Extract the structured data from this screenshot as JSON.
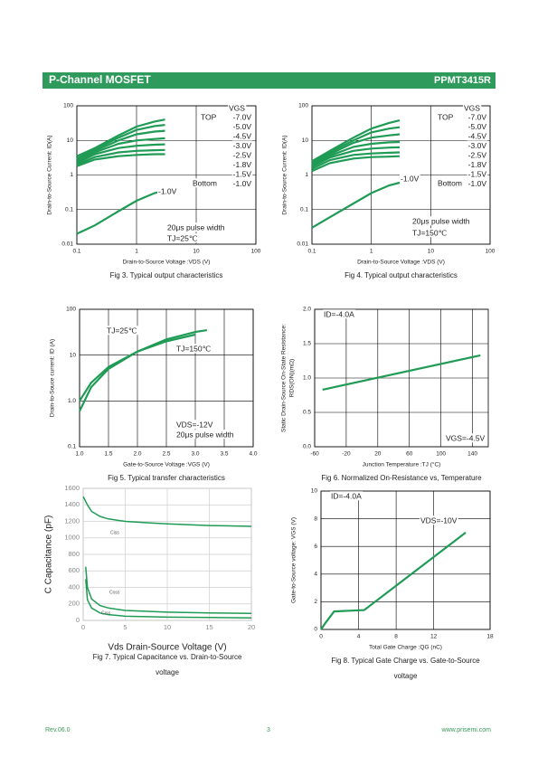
{
  "header": {
    "title": "P-Channel MOSFET",
    "part": "PPMT3415R"
  },
  "footer": {
    "rev": "Rev.06.0",
    "page": "3",
    "url": "www.prisemi.com"
  },
  "chart_data": [
    {
      "type": "line",
      "caption": [
        "Fig 3. Typical output characteristics"
      ],
      "xlabel": "Drain-to-Source Voltage :VDS (V)",
      "ylabel": [
        "Drain-to-Source Current: ID(A)"
      ],
      "xlog": true,
      "ylog": true,
      "xlim": [
        0.1,
        100
      ],
      "ylim": [
        0.01,
        100
      ],
      "xticks": [
        0.1,
        1,
        10,
        100
      ],
      "yticks": [
        0.01,
        0.1,
        1,
        10,
        100
      ],
      "grid": true,
      "color": "#1f9b55",
      "annotations": [
        "VGS",
        "TOP",
        "Bottom",
        "-1.0V",
        "20μs pulse width",
        "TJ=25℃"
      ],
      "series": [
        {
          "name": "-7.0V",
          "x": [
            0.1,
            0.2,
            0.5,
            1,
            2,
            3
          ],
          "values": [
            3.5,
            6,
            14,
            25,
            35,
            40
          ]
        },
        {
          "name": "-5.0V",
          "x": [
            0.1,
            0.2,
            0.5,
            1,
            2,
            3
          ],
          "values": [
            3,
            5.5,
            12,
            20,
            26,
            28
          ]
        },
        {
          "name": "-4.5V",
          "x": [
            0.1,
            0.2,
            0.5,
            1,
            2,
            3
          ],
          "values": [
            2.8,
            5,
            10,
            15,
            18,
            19
          ]
        },
        {
          "name": "-3.0V",
          "x": [
            0.1,
            0.2,
            0.5,
            1,
            2,
            3
          ],
          "values": [
            2.5,
            4.5,
            8,
            10,
            11,
            11.5
          ]
        },
        {
          "name": "-2.5V",
          "x": [
            0.1,
            0.2,
            0.5,
            1,
            2,
            3
          ],
          "values": [
            2.2,
            4,
            6,
            7,
            7.5,
            7.7
          ]
        },
        {
          "name": "-1.8V",
          "x": [
            0.1,
            0.2,
            0.5,
            1,
            2,
            3
          ],
          "values": [
            2,
            3.3,
            4.5,
            5,
            5.2,
            5.3
          ]
        },
        {
          "name": "-1.5V",
          "x": [
            0.1,
            0.2,
            0.5,
            1,
            2,
            3
          ],
          "values": [
            1.8,
            2.8,
            3.5,
            3.8,
            4,
            4
          ]
        },
        {
          "name": "-1.0V",
          "x": [
            0.1,
            0.2,
            0.5,
            1,
            2,
            3
          ],
          "values": [
            0.02,
            0.035,
            0.09,
            0.18,
            0.3,
            0.35
          ]
        }
      ]
    },
    {
      "type": "line",
      "caption": [
        "Fig 4. Typical output characteristics"
      ],
      "xlabel": "Drain-to-Source Voltage :VDS (V)",
      "ylabel": [
        "Drain-to-Source Current: ID(A)"
      ],
      "xlog": true,
      "ylog": true,
      "xlim": [
        0.1,
        100
      ],
      "ylim": [
        0.01,
        100
      ],
      "xticks": [
        0.1,
        1,
        10,
        100
      ],
      "yticks": [
        0.01,
        0.1,
        1,
        10,
        100
      ],
      "grid": true,
      "color": "#1f9b55",
      "annotations": [
        "VGS",
        "TOP",
        "Bottom",
        "-1.0V",
        "20μs pulse width",
        "TJ=150℃"
      ],
      "series": [
        {
          "name": "-7.0V",
          "x": [
            0.1,
            0.2,
            0.5,
            1,
            2,
            3
          ],
          "values": [
            2.5,
            5,
            12,
            22,
            32,
            38
          ]
        },
        {
          "name": "-5.0V",
          "x": [
            0.1,
            0.2,
            0.5,
            1,
            2,
            3
          ],
          "values": [
            2.3,
            4.5,
            10,
            17,
            22,
            24
          ]
        },
        {
          "name": "-4.5V",
          "x": [
            0.1,
            0.2,
            0.5,
            1,
            2,
            3
          ],
          "values": [
            2.1,
            4,
            8.5,
            12,
            14,
            15
          ]
        },
        {
          "name": "-3.0V",
          "x": [
            0.1,
            0.2,
            0.5,
            1,
            2,
            3
          ],
          "values": [
            1.9,
            3.6,
            6.5,
            8,
            8.8,
            9
          ]
        },
        {
          "name": "-2.5V",
          "x": [
            0.1,
            0.2,
            0.5,
            1,
            2,
            3
          ],
          "values": [
            1.7,
            3.2,
            5,
            5.8,
            6.2,
            6.3
          ]
        },
        {
          "name": "-1.8V",
          "x": [
            0.1,
            0.2,
            0.5,
            1,
            2,
            3
          ],
          "values": [
            1.5,
            2.7,
            3.8,
            4.2,
            4.4,
            4.5
          ]
        },
        {
          "name": "-1.5V",
          "x": [
            0.1,
            0.2,
            0.5,
            1,
            2,
            3
          ],
          "values": [
            1.3,
            2.2,
            3,
            3.3,
            3.4,
            3.5
          ]
        },
        {
          "name": "-1.0V",
          "x": [
            0.1,
            0.2,
            0.5,
            1,
            2,
            3
          ],
          "values": [
            0.03,
            0.06,
            0.15,
            0.3,
            0.5,
            0.6
          ]
        }
      ]
    },
    {
      "type": "line",
      "caption": [
        "Fig 5. Typical transfer characteristics"
      ],
      "xlabel": "Gate-to-Source Voltage :VGS (V)",
      "ylabel": [
        "Drain-to-Souce current: ID (A)"
      ],
      "ylog": true,
      "xlim": [
        1.0,
        4.0
      ],
      "ylim": [
        0.1,
        100
      ],
      "xticks": [
        {
          "value": 1.0,
          "label": "1.0"
        },
        1.5,
        {
          "value": 2.0,
          "label": "2.0"
        },
        2.5,
        {
          "value": 3.0,
          "label": "3.0"
        },
        3.5,
        {
          "value": 4.0,
          "label": "4.0"
        }
      ],
      "yticks": [
        0.1,
        {
          "value": 1.0,
          "label": "1.0"
        },
        10,
        100
      ],
      "grid": true,
      "color": "#1f9b55",
      "annotations": [
        "VDS=-12V",
        "20μs pulse width"
      ],
      "series": [
        {
          "name": "TJ=25℃",
          "x": [
            1.0,
            1.2,
            1.5,
            2,
            2.5,
            3,
            3.2
          ],
          "values": [
            0.6,
            2,
            5,
            12,
            22,
            32,
            35
          ]
        },
        {
          "name": "TJ=150℃",
          "x": [
            1.0,
            1.2,
            1.5,
            2,
            2.5,
            3
          ],
          "values": [
            1,
            2.5,
            5.5,
            12,
            20,
            28
          ]
        }
      ]
    },
    {
      "type": "line",
      "caption": [
        "Fig 6. Normalized On-Resistance vs, Temperature"
      ],
      "xlabel": "Junction Temperature :TJ (°C)",
      "ylabel": [
        "Static Drain-Source On-State Resistance:",
        "RDS(ON)(mΩ)"
      ],
      "xlim": [
        -60,
        160
      ],
      "ylim": [
        0,
        2.0
      ],
      "xticks": [
        -60,
        -20,
        20,
        60,
        100,
        140
      ],
      "yticks": [
        {
          "value": 0,
          "label": "0.0"
        },
        0.5,
        {
          "value": 1.0,
          "label": "1.0"
        },
        1.5,
        {
          "value": 2.0,
          "label": "2.0"
        }
      ],
      "grid": true,
      "color": "#1f9b55",
      "annotations": [
        "ID=-4.0A",
        "VGS=-4.5V"
      ],
      "series": [
        {
          "x": [
            -50,
            150
          ],
          "values": [
            0.83,
            1.33
          ]
        }
      ]
    },
    {
      "type": "line",
      "caption": [
        "Fig 7. Typical Capacitance vs. Drain-to-Source",
        "voltage"
      ],
      "xlabel": "Vds Drain-Source Voltage (V)",
      "ylabel": [
        "C Capacitance (pF)"
      ],
      "xlim": [
        0,
        20
      ],
      "ylim": [
        0,
        1600
      ],
      "xticks": [
        0,
        5,
        10,
        15,
        20
      ],
      "yticks": [
        0,
        200,
        400,
        600,
        800,
        1000,
        1200,
        1400,
        1600
      ],
      "grid": true,
      "color": "#1f9b55",
      "annotations": [],
      "series": [
        {
          "name": "Ciss",
          "x": [
            0,
            0.5,
            1,
            2,
            3,
            5,
            8,
            10,
            15,
            20
          ],
          "values": [
            1500,
            1400,
            1320,
            1260,
            1230,
            1200,
            1180,
            1170,
            1150,
            1140
          ]
        },
        {
          "name": "Coss",
          "x": [
            0.3,
            0.5,
            1,
            2,
            3,
            5,
            10,
            15,
            20
          ],
          "values": [
            650,
            400,
            260,
            180,
            150,
            120,
            100,
            90,
            85
          ]
        },
        {
          "name": "Crss",
          "x": [
            0.3,
            0.5,
            1,
            2,
            3,
            5,
            10,
            15,
            20
          ],
          "values": [
            500,
            250,
            150,
            90,
            70,
            50,
            40,
            35,
            30
          ]
        }
      ]
    },
    {
      "type": "line",
      "caption": [
        "Fig 8. Typical Gate Charge vs. Gate-to-Source",
        "voltage"
      ],
      "xlabel": "Total Gate Charge :QG (nC)",
      "ylabel": [
        "Gate-to-Source voltage: VGS (V)"
      ],
      "xlim": [
        0,
        18
      ],
      "ylim": [
        0,
        10
      ],
      "xticks": [
        0,
        4,
        8,
        12,
        18
      ],
      "yticks": [
        0,
        2,
        4,
        6,
        8,
        10
      ],
      "grid": true,
      "color": "#1f9b55",
      "annotations": [
        "ID=-4.0A",
        "VDS=-10V"
      ],
      "series": [
        {
          "x": [
            0,
            0.5,
            1.4,
            4.6,
            15.4
          ],
          "values": [
            0,
            0.5,
            1.3,
            1.4,
            7.0
          ]
        }
      ]
    }
  ]
}
